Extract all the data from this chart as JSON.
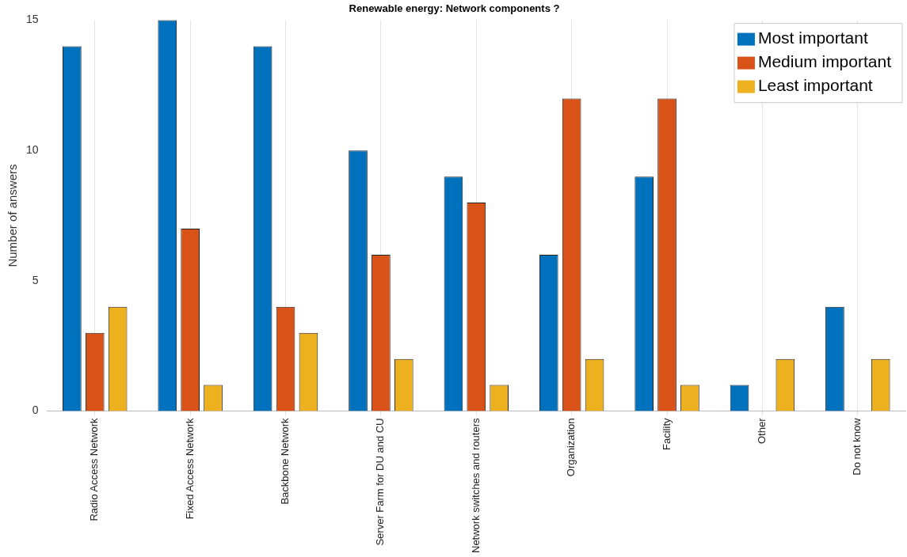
{
  "chart_data": {
    "type": "bar",
    "title": "Renewable energy: Network components ?",
    "ylabel": "Number of answers",
    "categories": [
      "Radio Access Network",
      "Fixed Access Network",
      "Backbone Network",
      "Server Farm for DU and CU",
      "Network switches and routers",
      "Organization",
      "Facility",
      "Other",
      "Do not know"
    ],
    "series": [
      {
        "name": "Most important",
        "color": "#0072bd",
        "values": [
          14,
          15,
          14,
          10,
          9,
          6,
          9,
          1,
          4
        ]
      },
      {
        "name": "Medium important",
        "color": "#d95319",
        "values": [
          3,
          7,
          4,
          6,
          8,
          12,
          12,
          0,
          0
        ]
      },
      {
        "name": "Least important",
        "color": "#edb120",
        "values": [
          4,
          1,
          3,
          2,
          1,
          2,
          1,
          2,
          2
        ]
      }
    ],
    "ylim": [
      0,
      15
    ],
    "yticks": [
      0,
      5,
      10,
      15
    ],
    "grid": "x",
    "legend": "top right"
  }
}
